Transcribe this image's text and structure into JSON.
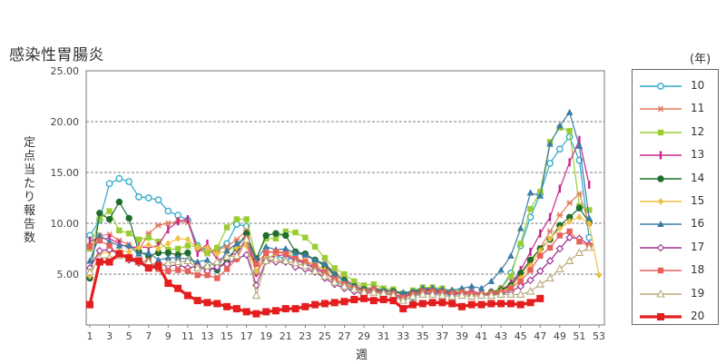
{
  "chart_data": {
    "type": "line",
    "title": "感染性胃腸炎",
    "xlabel": "週",
    "ylabel": "定点当たり報告数",
    "legend_unit": "(年)",
    "legend_position": "right",
    "grid": true,
    "ylim": [
      0,
      25
    ],
    "xlim": [
      1,
      53
    ],
    "y_ticks": [
      "5.00",
      "10.00",
      "15.00",
      "20.00",
      "25.00"
    ],
    "x_ticks": [
      "1",
      "3",
      "5",
      "7",
      "9",
      "11",
      "13",
      "15",
      "17",
      "19",
      "21",
      "23",
      "25",
      "27",
      "29",
      "31",
      "33",
      "35",
      "37",
      "39",
      "41",
      "43",
      "45",
      "47",
      "49",
      "51",
      "53"
    ],
    "series": [
      {
        "name": "10",
        "color": "#2aa8c8",
        "marker": "circle-open",
        "values": [
          8.8,
          10.3,
          13.9,
          14.4,
          14.1,
          12.6,
          12.5,
          12.3,
          11.2,
          10.8,
          10.3,
          7.8,
          7.3,
          7.4,
          8.0,
          9.9,
          9.7,
          5.2,
          6.6,
          6.8,
          6.5,
          6.5,
          6.0,
          5.7,
          5.2,
          4.4,
          3.7,
          3.5,
          3.2,
          3.3,
          3.1,
          2.9,
          2.5,
          2.7,
          3.2,
          3.0,
          3.2,
          2.8,
          3.3,
          3.0,
          3.0,
          3.2,
          3.6,
          5.1,
          7.8,
          10.6,
          12.9,
          15.9,
          17.3,
          18.5,
          16.2,
          8.6
        ]
      },
      {
        "name": "11",
        "color": "#e07a5f",
        "marker": "asterisk",
        "values": [
          7.8,
          8.8,
          8.9,
          8.3,
          7.9,
          7.3,
          9.0,
          9.8,
          10.0,
          10.2,
          10.1,
          7.5,
          7.0,
          7.4,
          7.7,
          8.4,
          9.3,
          5.1,
          7.2,
          7.2,
          7.2,
          7.1,
          6.8,
          6.4,
          6.0,
          5.2,
          4.5,
          4.0,
          3.7,
          3.6,
          3.5,
          3.3,
          3.0,
          3.3,
          3.5,
          3.5,
          3.3,
          3.3,
          3.1,
          3.2,
          3.0,
          3.2,
          3.4,
          3.8,
          5.0,
          6.2,
          7.6,
          9.2,
          10.8,
          12.0,
          12.9,
          10.0
        ]
      },
      {
        "name": "12",
        "color": "#9acd32",
        "marker": "square",
        "values": [
          7.5,
          10.4,
          11.2,
          9.3,
          9.0,
          8.4,
          8.6,
          8.2,
          7.4,
          7.5,
          7.8,
          7.7,
          7.1,
          7.6,
          9.6,
          10.4,
          10.4,
          6.6,
          8.5,
          8.5,
          9.2,
          9.1,
          8.6,
          7.7,
          6.6,
          5.6,
          5.0,
          4.3,
          3.9,
          4.0,
          3.6,
          3.5,
          3.1,
          3.4,
          3.7,
          3.7,
          3.6,
          3.3,
          3.4,
          3.1,
          3.0,
          3.2,
          3.6,
          4.8,
          8.0,
          11.4,
          13.1,
          18.0,
          19.4,
          19.1,
          11.7,
          11.3
        ]
      },
      {
        "name": "13",
        "color": "#c8288c",
        "marker": "bar",
        "values": [
          8.3,
          8.5,
          8.5,
          8.0,
          7.6,
          7.7,
          7.6,
          7.8,
          9.4,
          10.2,
          10.4,
          7.1,
          8.0,
          6.4,
          6.7,
          7.1,
          8.5,
          5.1,
          6.6,
          6.8,
          6.9,
          6.3,
          6.1,
          5.5,
          5.1,
          4.5,
          4.0,
          3.6,
          3.2,
          3.3,
          3.2,
          3.0,
          2.8,
          3.1,
          3.5,
          3.5,
          3.3,
          3.3,
          3.1,
          3.4,
          3.0,
          3.2,
          3.4,
          4.1,
          5.4,
          7.2,
          9.0,
          10.6,
          13.4,
          16.0,
          18.2,
          13.8
        ]
      },
      {
        "name": "14",
        "color": "#1e6e2e",
        "marker": "circle-filled",
        "values": [
          4.6,
          11.0,
          10.4,
          12.1,
          10.5,
          7.2,
          6.8,
          7.1,
          7.1,
          6.9,
          7.1,
          5.6,
          5.7,
          5.4,
          6.4,
          7.6,
          9.0,
          6.5,
          8.8,
          9.0,
          8.8,
          7.2,
          7.0,
          6.4,
          5.8,
          4.9,
          4.4,
          3.8,
          3.5,
          3.5,
          3.3,
          3.3,
          3.0,
          3.2,
          3.4,
          3.4,
          3.3,
          3.2,
          3.1,
          3.0,
          3.0,
          3.2,
          3.4,
          3.9,
          5.1,
          6.4,
          7.5,
          8.4,
          9.8,
          10.6,
          11.5,
          10.1
        ]
      },
      {
        "name": "15",
        "color": "#f0c040",
        "marker": "diamond",
        "values": [
          4.8,
          7.0,
          7.2,
          7.3,
          7.2,
          7.6,
          7.9,
          7.5,
          8.0,
          8.5,
          8.4,
          7.6,
          7.6,
          7.0,
          7.3,
          7.6,
          7.8,
          5.3,
          6.5,
          7.0,
          7.3,
          6.5,
          6.3,
          6.0,
          5.4,
          4.8,
          4.1,
          3.7,
          3.4,
          3.3,
          3.0,
          3.0,
          2.7,
          3.0,
          3.3,
          3.3,
          3.2,
          3.0,
          3.1,
          3.1,
          3.0,
          3.1,
          3.3,
          3.7,
          4.6,
          5.8,
          7.3,
          8.5,
          9.5,
          10.2,
          10.6,
          10.0,
          4.9
        ]
      },
      {
        "name": "16",
        "color": "#3a7ca5",
        "marker": "triangle-filled",
        "values": [
          6.3,
          8.8,
          8.2,
          7.8,
          7.8,
          7.0,
          7.1,
          6.4,
          6.6,
          6.6,
          6.5,
          6.2,
          6.4,
          5.6,
          7.3,
          8.0,
          8.6,
          6.4,
          7.7,
          7.4,
          7.5,
          7.1,
          6.9,
          6.4,
          6.0,
          5.0,
          4.3,
          3.8,
          3.4,
          3.6,
          3.4,
          3.3,
          3.2,
          3.3,
          3.6,
          3.6,
          3.5,
          3.4,
          3.6,
          3.8,
          3.6,
          4.3,
          5.4,
          6.8,
          9.5,
          13.0,
          12.7,
          17.8,
          19.6,
          20.9,
          17.6,
          10.5
        ]
      },
      {
        "name": "17",
        "color": "#9b2a8c",
        "marker": "diamond-open",
        "values": [
          5.6,
          7.3,
          7.4,
          7.0,
          6.4,
          6.1,
          5.9,
          6.0,
          5.8,
          5.9,
          5.6,
          5.8,
          5.3,
          5.7,
          6.0,
          6.5,
          6.9,
          3.9,
          6.3,
          6.2,
          6.2,
          5.7,
          5.5,
          5.2,
          4.6,
          4.0,
          3.6,
          3.3,
          3.0,
          3.3,
          3.0,
          3.0,
          2.7,
          3.0,
          3.2,
          3.1,
          3.2,
          3.0,
          3.1,
          3.0,
          3.0,
          3.0,
          3.1,
          3.3,
          3.8,
          4.4,
          5.3,
          6.3,
          7.5,
          8.6,
          8.5,
          7.9
        ]
      },
      {
        "name": "18",
        "color": "#e8605a",
        "marker": "square",
        "values": [
          7.7,
          8.3,
          7.8,
          6.8,
          6.7,
          6.2,
          6.3,
          5.5,
          5.3,
          5.4,
          5.3,
          4.9,
          4.9,
          4.6,
          5.5,
          6.5,
          8.5,
          6.0,
          7.1,
          7.2,
          7.0,
          6.5,
          6.2,
          5.8,
          5.2,
          4.5,
          4.0,
          3.6,
          3.3,
          3.5,
          3.1,
          3.1,
          2.7,
          3.0,
          3.3,
          3.3,
          3.2,
          3.1,
          3.2,
          3.0,
          3.0,
          3.1,
          3.2,
          3.6,
          4.3,
          5.4,
          6.8,
          7.6,
          8.8,
          9.2,
          8.2,
          7.8
        ]
      },
      {
        "name": "19",
        "color": "#b8a878",
        "marker": "triangle-open",
        "values": [
          5.2,
          6.6,
          6.6,
          6.8,
          6.5,
          6.2,
          6.2,
          5.8,
          6.1,
          6.2,
          6.3,
          5.6,
          5.8,
          6.2,
          6.7,
          6.8,
          8.4,
          2.9,
          6.3,
          6.5,
          6.3,
          6.1,
          5.8,
          5.3,
          4.8,
          4.2,
          3.8,
          3.5,
          3.2,
          3.2,
          3.1,
          2.9,
          2.4,
          2.8,
          3.0,
          3.0,
          2.9,
          2.8,
          2.9,
          2.8,
          2.9,
          2.9,
          3.0,
          3.0,
          3.0,
          3.3,
          4.0,
          4.6,
          5.5,
          6.3,
          7.1,
          7.6
        ]
      },
      {
        "name": "20",
        "color": "#e41e1e",
        "marker": "square-bold",
        "values": [
          2.0,
          6.2,
          6.2,
          7.0,
          6.6,
          6.3,
          5.6,
          5.8,
          4.1,
          3.6,
          2.9,
          2.4,
          2.2,
          2.1,
          1.8,
          1.6,
          1.3,
          1.1,
          1.3,
          1.4,
          1.6,
          1.6,
          1.8,
          2.0,
          2.1,
          2.2,
          2.3,
          2.5,
          2.6,
          2.4,
          2.5,
          2.4,
          1.6,
          2.0,
          2.1,
          2.2,
          2.2,
          2.1,
          1.8,
          2.0,
          2.0,
          2.1,
          2.1,
          2.1,
          2.0,
          2.2,
          2.6
        ]
      }
    ]
  }
}
